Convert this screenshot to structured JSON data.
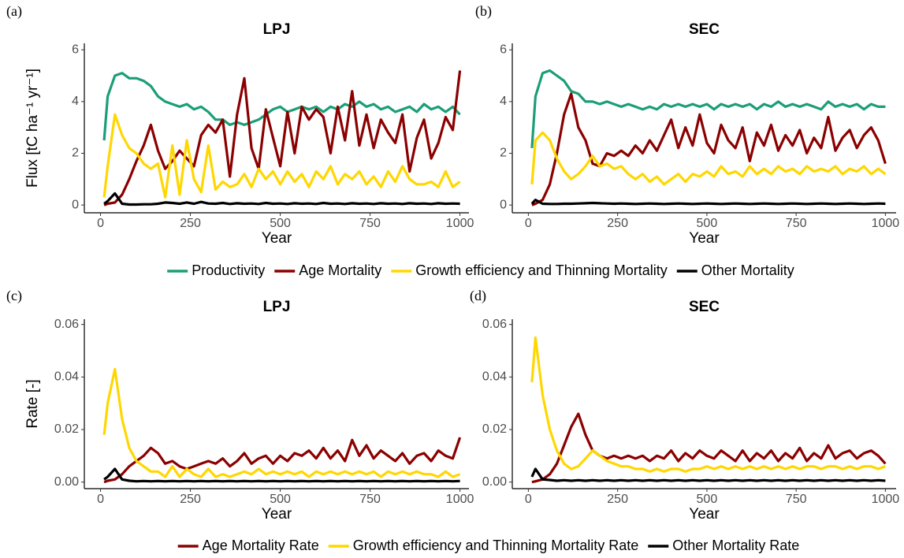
{
  "chart_data": [
    {
      "type": "line",
      "panel_label": "(a)",
      "title": "LPJ",
      "xlabel": "Year",
      "ylabel": "Flux [tC ha⁻¹ yr⁻¹]",
      "x": [
        10,
        20,
        40,
        60,
        80,
        100,
        120,
        140,
        160,
        180,
        200,
        220,
        240,
        260,
        280,
        300,
        320,
        340,
        360,
        380,
        400,
        420,
        440,
        460,
        480,
        500,
        520,
        540,
        560,
        580,
        600,
        620,
        640,
        660,
        680,
        700,
        720,
        740,
        760,
        780,
        800,
        820,
        840,
        860,
        880,
        900,
        920,
        940,
        960,
        980,
        1000
      ],
      "xlim": [
        -45,
        1025
      ],
      "xticks": [
        0,
        250,
        500,
        750,
        1000
      ],
      "ylim": [
        -0.3,
        6.25
      ],
      "yticks": [
        0,
        2,
        4,
        6
      ],
      "series": [
        {
          "name": "Productivity",
          "color": "#1b9e77",
          "values": [
            2.5,
            4.2,
            5.0,
            5.1,
            4.9,
            4.9,
            4.8,
            4.6,
            4.2,
            4.0,
            3.9,
            3.8,
            3.9,
            3.7,
            3.8,
            3.6,
            3.3,
            3.3,
            3.1,
            3.2,
            3.1,
            3.2,
            3.3,
            3.5,
            3.7,
            3.8,
            3.6,
            3.7,
            3.8,
            3.7,
            3.8,
            3.6,
            3.8,
            3.7,
            3.9,
            3.8,
            4.0,
            3.8,
            3.9,
            3.7,
            3.8,
            3.6,
            3.7,
            3.8,
            3.6,
            3.9,
            3.7,
            3.8,
            3.6,
            3.8,
            3.5
          ]
        },
        {
          "name": "Age Mortality",
          "color": "#8b0000",
          "values": [
            0,
            0.05,
            0.1,
            0.4,
            1.0,
            1.7,
            2.3,
            3.1,
            2.1,
            1.4,
            1.7,
            2.1,
            1.8,
            1.5,
            2.7,
            3.1,
            2.8,
            3.3,
            1.1,
            3.5,
            4.9,
            2.2,
            1.4,
            3.7,
            2.6,
            1.5,
            3.6,
            2.0,
            3.8,
            3.3,
            3.7,
            3.4,
            2.0,
            3.8,
            2.5,
            4.4,
            2.3,
            3.5,
            2.2,
            3.3,
            2.8,
            2.4,
            3.5,
            1.3,
            2.6,
            3.3,
            1.8,
            2.4,
            3.4,
            2.9,
            5.2
          ]
        },
        {
          "name": "Growth efficiency and Thinning Mortality",
          "color": "#ffd700",
          "values": [
            0.3,
            1.5,
            3.5,
            2.7,
            2.2,
            2.0,
            1.6,
            1.4,
            1.6,
            0.3,
            2.3,
            0.4,
            2.5,
            1.0,
            0.5,
            2.3,
            0.6,
            0.9,
            0.7,
            0.8,
            1.2,
            0.7,
            1.4,
            1.0,
            1.3,
            0.8,
            1.3,
            0.9,
            1.2,
            0.7,
            1.3,
            1.0,
            1.5,
            0.8,
            1.2,
            1.0,
            1.3,
            0.8,
            1.1,
            0.7,
            1.3,
            0.9,
            1.5,
            1.0,
            0.8,
            0.8,
            0.9,
            0.7,
            1.3,
            0.7,
            0.9
          ]
        },
        {
          "name": "Other Mortality",
          "color": "#000000",
          "values": [
            0.05,
            0.15,
            0.45,
            0.05,
            0.02,
            0.02,
            0.03,
            0.03,
            0.05,
            0.1,
            0.08,
            0.05,
            0.1,
            0.05,
            0.12,
            0.06,
            0.05,
            0.08,
            0.04,
            0.07,
            0.05,
            0.06,
            0.04,
            0.08,
            0.05,
            0.06,
            0.04,
            0.07,
            0.05,
            0.06,
            0.04,
            0.08,
            0.05,
            0.06,
            0.04,
            0.07,
            0.05,
            0.06,
            0.04,
            0.07,
            0.05,
            0.06,
            0.04,
            0.07,
            0.05,
            0.06,
            0.04,
            0.07,
            0.05,
            0.06,
            0.05
          ]
        }
      ]
    },
    {
      "type": "line",
      "panel_label": "(b)",
      "title": "SEC",
      "xlabel": "Year",
      "x": [
        10,
        20,
        40,
        60,
        80,
        100,
        120,
        140,
        160,
        180,
        200,
        220,
        240,
        260,
        280,
        300,
        320,
        340,
        360,
        380,
        400,
        420,
        440,
        460,
        480,
        500,
        520,
        540,
        560,
        580,
        600,
        620,
        640,
        660,
        680,
        700,
        720,
        740,
        760,
        780,
        800,
        820,
        840,
        860,
        880,
        900,
        920,
        940,
        960,
        980,
        1000
      ],
      "xlim": [
        -45,
        1030
      ],
      "xticks": [
        0,
        250,
        500,
        750,
        1000
      ],
      "ylim": [
        -0.3,
        6.25
      ],
      "yticks": [
        0,
        2,
        4,
        6
      ],
      "series": [
        {
          "color": "#1b9e77",
          "values": [
            2.2,
            4.2,
            5.1,
            5.2,
            5.0,
            4.8,
            4.4,
            4.3,
            4.0,
            4.0,
            3.9,
            4.0,
            3.9,
            3.8,
            3.9,
            3.8,
            3.7,
            3.8,
            3.7,
            3.9,
            3.8,
            3.9,
            3.8,
            3.9,
            3.8,
            3.9,
            3.7,
            3.9,
            3.8,
            3.9,
            3.8,
            3.9,
            3.7,
            3.9,
            3.8,
            4.0,
            3.8,
            3.9,
            3.8,
            3.9,
            3.8,
            3.7,
            4.0,
            3.8,
            3.9,
            3.8,
            3.9,
            3.7,
            3.9,
            3.8,
            3.8
          ]
        },
        {
          "color": "#8b0000",
          "values": [
            0,
            0.05,
            0.2,
            0.8,
            2.0,
            3.5,
            4.3,
            3.0,
            2.5,
            1.6,
            1.5,
            2.0,
            1.9,
            2.1,
            1.9,
            2.3,
            2.0,
            2.5,
            2.1,
            2.7,
            3.3,
            2.2,
            3.0,
            2.3,
            3.5,
            2.4,
            2.0,
            3.1,
            2.5,
            2.2,
            3.0,
            1.7,
            2.8,
            2.3,
            3.1,
            2.1,
            2.7,
            2.3,
            2.9,
            2.0,
            2.6,
            2.2,
            3.4,
            2.1,
            2.6,
            2.9,
            2.2,
            2.7,
            3.0,
            2.5,
            1.6
          ]
        },
        {
          "color": "#ffd700",
          "values": [
            0.8,
            2.5,
            2.8,
            2.5,
            1.8,
            1.3,
            1.0,
            1.2,
            1.5,
            1.9,
            1.5,
            1.6,
            1.4,
            1.5,
            1.2,
            1.0,
            1.2,
            0.9,
            1.1,
            0.8,
            1.0,
            1.2,
            0.9,
            1.2,
            1.1,
            1.3,
            1.1,
            1.5,
            1.2,
            1.3,
            1.1,
            1.5,
            1.2,
            1.4,
            1.2,
            1.5,
            1.3,
            1.4,
            1.2,
            1.5,
            1.3,
            1.4,
            1.3,
            1.5,
            1.2,
            1.4,
            1.3,
            1.5,
            1.2,
            1.4,
            1.2
          ]
        },
        {
          "color": "#000000",
          "values": [
            0.05,
            0.2,
            0.05,
            0.04,
            0.04,
            0.05,
            0.05,
            0.06,
            0.07,
            0.08,
            0.07,
            0.06,
            0.05,
            0.06,
            0.05,
            0.04,
            0.05,
            0.06,
            0.05,
            0.04,
            0.05,
            0.06,
            0.05,
            0.04,
            0.05,
            0.06,
            0.05,
            0.04,
            0.05,
            0.06,
            0.05,
            0.04,
            0.05,
            0.06,
            0.05,
            0.04,
            0.05,
            0.06,
            0.05,
            0.04,
            0.05,
            0.06,
            0.05,
            0.04,
            0.05,
            0.06,
            0.05,
            0.04,
            0.05,
            0.06,
            0.05
          ]
        }
      ]
    },
    {
      "type": "line",
      "panel_label": "(c)",
      "title": "LPJ",
      "xlabel": "Year",
      "ylabel": "Rate [-]",
      "x": [
        10,
        20,
        40,
        60,
        80,
        100,
        120,
        140,
        160,
        180,
        200,
        220,
        240,
        260,
        280,
        300,
        320,
        340,
        360,
        380,
        400,
        420,
        440,
        460,
        480,
        500,
        520,
        540,
        560,
        580,
        600,
        620,
        640,
        660,
        680,
        700,
        720,
        740,
        760,
        780,
        800,
        820,
        840,
        860,
        880,
        900,
        920,
        940,
        960,
        980,
        1000
      ],
      "xlim": [
        -45,
        1025
      ],
      "xticks": [
        0,
        250,
        500,
        750,
        1000
      ],
      "ylim": [
        -0.0025,
        0.062
      ],
      "yticks": [
        {
          "value": 0,
          "label": "0.00"
        },
        {
          "value": 0.02,
          "label": "0.02"
        },
        {
          "value": 0.04,
          "label": "0.04"
        },
        {
          "value": 0.06,
          "label": "0.06"
        }
      ],
      "series": [
        {
          "name": "Age Mortality Rate",
          "color": "#8b0000",
          "values": [
            0,
            0.0005,
            0.001,
            0.003,
            0.006,
            0.008,
            0.01,
            0.013,
            0.011,
            0.007,
            0.008,
            0.006,
            0.005,
            0.006,
            0.007,
            0.008,
            0.007,
            0.009,
            0.006,
            0.008,
            0.011,
            0.007,
            0.009,
            0.01,
            0.007,
            0.01,
            0.008,
            0.011,
            0.01,
            0.012,
            0.009,
            0.013,
            0.009,
            0.012,
            0.008,
            0.016,
            0.01,
            0.014,
            0.009,
            0.012,
            0.01,
            0.008,
            0.011,
            0.007,
            0.01,
            0.011,
            0.008,
            0.012,
            0.01,
            0.009,
            0.017
          ]
        },
        {
          "name": "Growth efficiency and Thinning Mortality Rate",
          "color": "#ffd700",
          "values": [
            0.018,
            0.03,
            0.043,
            0.024,
            0.013,
            0.008,
            0.006,
            0.004,
            0.004,
            0.002,
            0.006,
            0.002,
            0.005,
            0.003,
            0.002,
            0.005,
            0.002,
            0.003,
            0.002,
            0.003,
            0.004,
            0.003,
            0.005,
            0.003,
            0.004,
            0.003,
            0.004,
            0.003,
            0.004,
            0.002,
            0.004,
            0.003,
            0.004,
            0.003,
            0.004,
            0.003,
            0.004,
            0.003,
            0.004,
            0.002,
            0.004,
            0.003,
            0.004,
            0.003,
            0.004,
            0.003,
            0.003,
            0.002,
            0.004,
            0.002,
            0.003
          ]
        },
        {
          "name": "Other Mortality Rate",
          "color": "#000000",
          "values": [
            0.001,
            0.002,
            0.005,
            0.001,
            0.0005,
            0.0003,
            0.0004,
            0.0003,
            0.0004,
            0.0003,
            0.0004,
            0.0003,
            0.0004,
            0.0003,
            0.0004,
            0.0003,
            0.0004,
            0.0003,
            0.0004,
            0.0003,
            0.0004,
            0.0003,
            0.0004,
            0.0003,
            0.0004,
            0.0003,
            0.0004,
            0.0003,
            0.0004,
            0.0003,
            0.0004,
            0.0003,
            0.0004,
            0.0003,
            0.0004,
            0.0003,
            0.0004,
            0.0003,
            0.0004,
            0.0003,
            0.0004,
            0.0003,
            0.0004,
            0.0003,
            0.0004,
            0.0003,
            0.0004,
            0.0003,
            0.0004,
            0.0003,
            0.0004
          ]
        }
      ]
    },
    {
      "type": "line",
      "panel_label": "(d)",
      "title": "SEC",
      "xlabel": "Year",
      "x": [
        10,
        20,
        40,
        60,
        80,
        100,
        120,
        140,
        160,
        180,
        200,
        220,
        240,
        260,
        280,
        300,
        320,
        340,
        360,
        380,
        400,
        420,
        440,
        460,
        480,
        500,
        520,
        540,
        560,
        580,
        600,
        620,
        640,
        660,
        680,
        700,
        720,
        740,
        760,
        780,
        800,
        820,
        840,
        860,
        880,
        900,
        920,
        940,
        960,
        980,
        1000
      ],
      "xlim": [
        -45,
        1030
      ],
      "xticks": [
        0,
        250,
        500,
        750,
        1000
      ],
      "ylim": [
        -0.0025,
        0.062
      ],
      "yticks": [
        {
          "value": 0,
          "label": "0.00"
        },
        {
          "value": 0.02,
          "label": "0.02"
        },
        {
          "value": 0.04,
          "label": "0.04"
        },
        {
          "value": 0.06,
          "label": "0.06"
        }
      ],
      "series": [
        {
          "color": "#8b0000",
          "values": [
            0,
            0.0003,
            0.001,
            0.003,
            0.007,
            0.014,
            0.021,
            0.026,
            0.018,
            0.012,
            0.01,
            0.009,
            0.01,
            0.009,
            0.01,
            0.009,
            0.01,
            0.008,
            0.01,
            0.009,
            0.012,
            0.008,
            0.011,
            0.009,
            0.012,
            0.01,
            0.009,
            0.012,
            0.01,
            0.008,
            0.012,
            0.008,
            0.011,
            0.009,
            0.012,
            0.008,
            0.011,
            0.009,
            0.013,
            0.008,
            0.011,
            0.009,
            0.014,
            0.009,
            0.011,
            0.012,
            0.009,
            0.011,
            0.012,
            0.01,
            0.007
          ]
        },
        {
          "color": "#ffd700",
          "values": [
            0.038,
            0.055,
            0.033,
            0.02,
            0.012,
            0.007,
            0.005,
            0.006,
            0.009,
            0.012,
            0.01,
            0.008,
            0.007,
            0.006,
            0.006,
            0.005,
            0.005,
            0.004,
            0.005,
            0.004,
            0.005,
            0.005,
            0.004,
            0.005,
            0.005,
            0.006,
            0.005,
            0.006,
            0.005,
            0.006,
            0.005,
            0.006,
            0.005,
            0.006,
            0.005,
            0.006,
            0.005,
            0.006,
            0.005,
            0.006,
            0.006,
            0.005,
            0.006,
            0.006,
            0.005,
            0.006,
            0.005,
            0.006,
            0.006,
            0.005,
            0.006
          ]
        },
        {
          "color": "#000000",
          "values": [
            0.002,
            0.005,
            0.001,
            0.0008,
            0.0005,
            0.0007,
            0.0005,
            0.0007,
            0.0005,
            0.0007,
            0.0005,
            0.0007,
            0.0005,
            0.0007,
            0.0005,
            0.0007,
            0.0005,
            0.0007,
            0.0005,
            0.0007,
            0.0005,
            0.0007,
            0.0005,
            0.0007,
            0.0005,
            0.0007,
            0.0005,
            0.0007,
            0.0005,
            0.0007,
            0.0005,
            0.0007,
            0.0005,
            0.0007,
            0.0005,
            0.0007,
            0.0005,
            0.0007,
            0.0005,
            0.0007,
            0.0005,
            0.0007,
            0.0005,
            0.0007,
            0.0005,
            0.0007,
            0.0005,
            0.0007,
            0.0005,
            0.0007,
            0.0005
          ]
        }
      ]
    }
  ]
}
